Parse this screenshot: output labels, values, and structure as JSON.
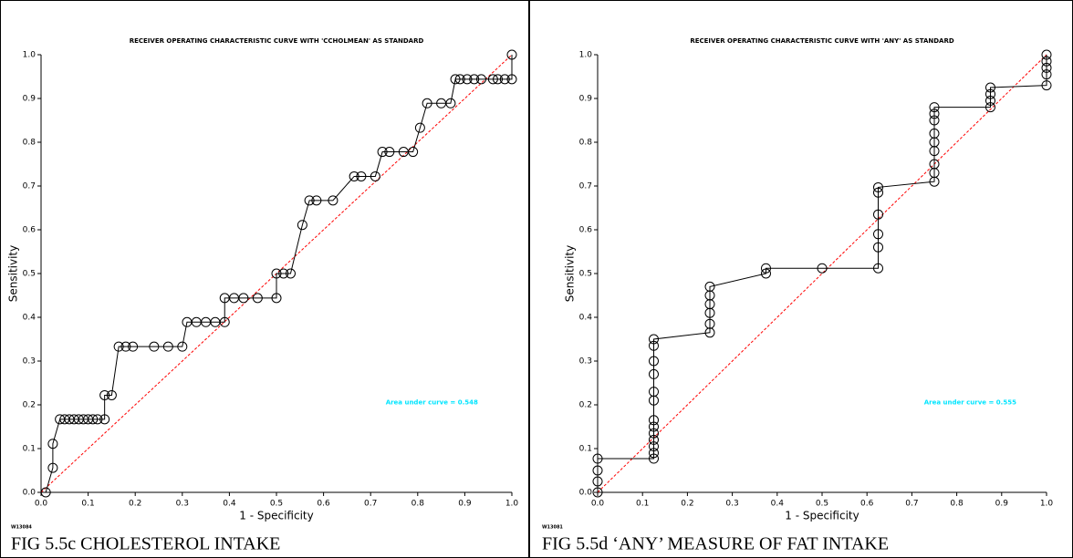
{
  "chart_data": [
    {
      "type": "line",
      "title": "RECEIVER OPERATING CHARACTERISTIC CURVE WITH 'CCHOLMEAN' AS STANDARD",
      "x_label": "1 - Specificity",
      "y_label": "Sensitivity",
      "annotation": "Area under curve = 0.548",
      "code": "W13084",
      "caption": "FIG 5.5c CHOLESTEROL INTAKE",
      "color": "#000000",
      "annotation_color": "#00e5ff",
      "reference_color": "#ff0000",
      "x": [
        0.01,
        0.025,
        0.025,
        0.04,
        0.05,
        0.06,
        0.07,
        0.08,
        0.09,
        0.1,
        0.11,
        0.12,
        0.135,
        0.135,
        0.15,
        0.165,
        0.18,
        0.195,
        0.24,
        0.27,
        0.3,
        0.31,
        0.33,
        0.35,
        0.37,
        0.39,
        0.39,
        0.41,
        0.43,
        0.46,
        0.5,
        0.5,
        0.515,
        0.53,
        0.555,
        0.57,
        0.585,
        0.62,
        0.665,
        0.68,
        0.71,
        0.725,
        0.74,
        0.77,
        0.79,
        0.805,
        0.82,
        0.85,
        0.87,
        0.88,
        0.89,
        0.905,
        0.92,
        0.935,
        0.96,
        0.97,
        0.985,
        1.0,
        1.0
      ],
      "values": [
        0.0,
        0.056,
        0.111,
        0.167,
        0.167,
        0.167,
        0.167,
        0.167,
        0.167,
        0.167,
        0.167,
        0.167,
        0.167,
        0.222,
        0.222,
        0.333,
        0.333,
        0.333,
        0.333,
        0.333,
        0.333,
        0.389,
        0.389,
        0.389,
        0.389,
        0.389,
        0.444,
        0.444,
        0.444,
        0.444,
        0.444,
        0.5,
        0.5,
        0.5,
        0.611,
        0.667,
        0.667,
        0.667,
        0.722,
        0.722,
        0.722,
        0.778,
        0.778,
        0.778,
        0.778,
        0.833,
        0.889,
        0.889,
        0.889,
        0.944,
        0.944,
        0.944,
        0.944,
        0.944,
        0.944,
        0.944,
        0.944,
        0.944,
        1.0
      ],
      "xlim": [
        0,
        1
      ],
      "ylim": [
        0,
        1
      ],
      "xticks": [
        {
          "value": 0,
          "label": "0.0"
        },
        0.1,
        0.2,
        0.3,
        0.4,
        0.5,
        0.6,
        0.7,
        0.8,
        0.9,
        {
          "value": 1,
          "label": "1.0"
        }
      ],
      "yticks": [
        {
          "value": 0,
          "label": "0.0"
        },
        0.1,
        0.2,
        0.3,
        0.4,
        0.5,
        0.6,
        0.7,
        0.8,
        0.9,
        {
          "value": 1,
          "label": "1.0"
        }
      ]
    },
    {
      "type": "line",
      "title": "RECEIVER OPERATING CHARACTERISTIC CURVE WITH 'ANY' AS STANDARD",
      "x_label": "1 - Specificity",
      "y_label": "Sensitivity",
      "annotation": "Area under curve = 0.555",
      "code": "W13081",
      "caption": "FIG 5.5d ‘ANY’ MEASURE OF FAT INTAKE",
      "color": "#000000",
      "annotation_color": "#00e5ff",
      "reference_color": "#ff0000",
      "x": [
        0,
        0,
        0,
        0,
        0.125,
        0.125,
        0.125,
        0.125,
        0.125,
        0.125,
        0.125,
        0.125,
        0.125,
        0.125,
        0.125,
        0.125,
        0.125,
        0.25,
        0.25,
        0.25,
        0.25,
        0.25,
        0.25,
        0.375,
        0.375,
        0.5,
        0.625,
        0.625,
        0.625,
        0.625,
        0.625,
        0.625,
        0.75,
        0.75,
        0.75,
        0.75,
        0.75,
        0.75,
        0.75,
        0.75,
        0.75,
        0.875,
        0.875,
        0.875,
        0.875,
        1.0,
        1.0,
        1.0,
        1.0,
        1.0
      ],
      "values": [
        0.0,
        0.025,
        0.05,
        0.077,
        0.077,
        0.09,
        0.105,
        0.12,
        0.135,
        0.15,
        0.165,
        0.21,
        0.23,
        0.27,
        0.3,
        0.335,
        0.35,
        0.365,
        0.385,
        0.41,
        0.43,
        0.45,
        0.47,
        0.5,
        0.512,
        0.512,
        0.512,
        0.56,
        0.59,
        0.635,
        0.685,
        0.697,
        0.71,
        0.73,
        0.75,
        0.78,
        0.8,
        0.82,
        0.85,
        0.865,
        0.88,
        0.88,
        0.895,
        0.91,
        0.925,
        0.93,
        0.955,
        0.97,
        0.985,
        1.0
      ],
      "xlim": [
        0,
        1
      ],
      "ylim": [
        0,
        1
      ],
      "xticks": [
        {
          "value": 0,
          "label": "0.0"
        },
        0.1,
        0.2,
        0.3,
        0.4,
        0.5,
        0.6,
        0.7,
        0.8,
        0.9,
        {
          "value": 1,
          "label": "1.0"
        }
      ],
      "yticks": [
        {
          "value": 0,
          "label": "0.0"
        },
        0.1,
        0.2,
        0.3,
        0.4,
        0.5,
        0.6,
        0.7,
        0.8,
        0.9,
        {
          "value": 1,
          "label": "1.0"
        }
      ]
    }
  ]
}
